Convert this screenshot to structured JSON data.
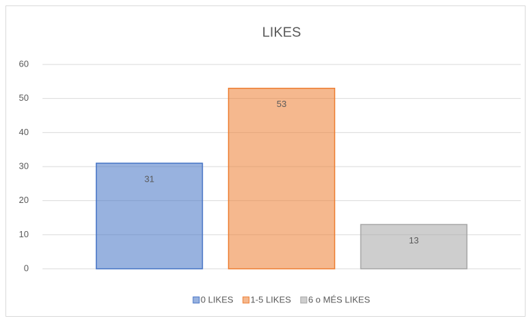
{
  "chart_data": {
    "type": "bar",
    "title": "LIKES",
    "categories": [
      null
    ],
    "series": [
      {
        "name": "0 LIKES",
        "color": "#4472c4",
        "values": [
          31
        ]
      },
      {
        "name": "1-5 LIKES",
        "color": "#ed7d31",
        "values": [
          53
        ]
      },
      {
        "name": "6 o MÉS LIKES",
        "color": "#a5a5a5",
        "values": [
          13
        ]
      }
    ],
    "ylim": [
      0,
      60
    ],
    "yticks": [
      0,
      10,
      20,
      30,
      40,
      50,
      60
    ],
    "grid": true,
    "legend": "bottom"
  }
}
